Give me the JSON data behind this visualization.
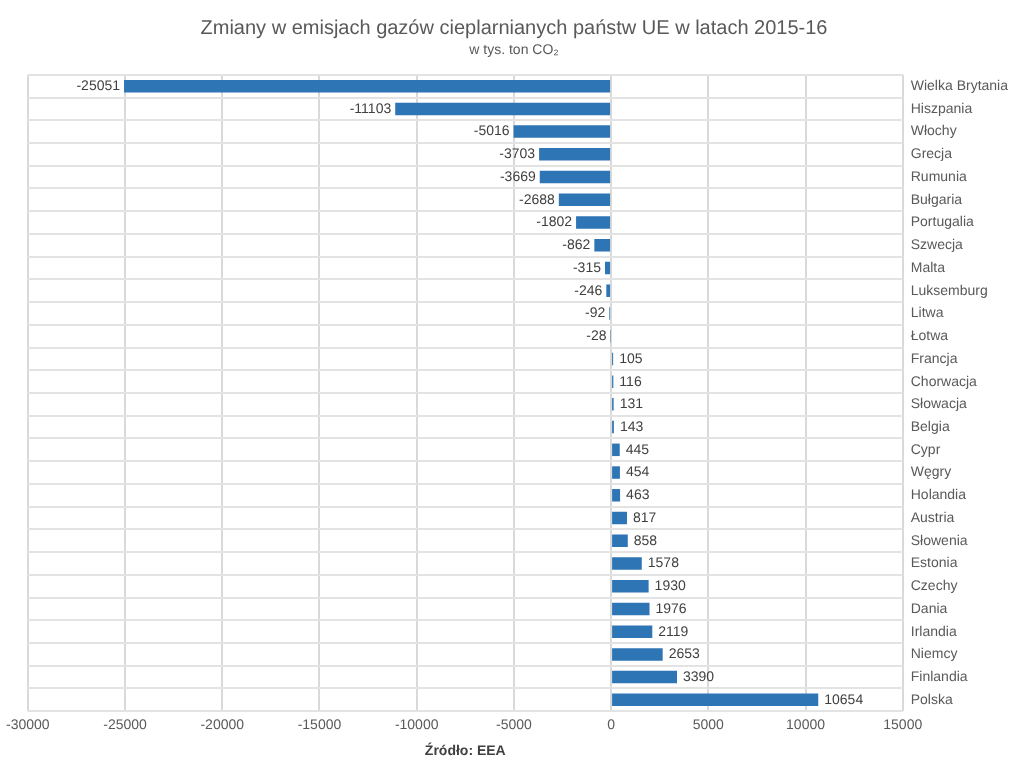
{
  "chart_data": {
    "type": "bar",
    "orientation": "horizontal",
    "title": "Zmiany w emisjach gazów cieplarnianych państw UE w latach 2015-16",
    "subtitle": "w tys. ton CO₂",
    "categories": [
      "Wielka Brytania",
      "Hiszpania",
      "Włochy",
      "Grecja",
      "Rumunia",
      "Bułgaria",
      "Portugalia",
      "Szwecja",
      "Malta",
      "Luksemburg",
      "Litwa",
      "Łotwa",
      "Francja",
      "Chorwacja",
      "Słowacja",
      "Belgia",
      "Cypr",
      "Węgry",
      "Holandia",
      "Austria",
      "Słowenia",
      "Estonia",
      "Czechy",
      "Dania",
      "Irlandia",
      "Niemcy",
      "Finlandia",
      "Polska"
    ],
    "values": [
      -25051,
      -11103,
      -5016,
      -3703,
      -3669,
      -2688,
      -1802,
      -862,
      -315,
      -246,
      -92,
      -28,
      105,
      116,
      131,
      143,
      445,
      454,
      463,
      817,
      858,
      1578,
      1930,
      1976,
      2119,
      2653,
      3390,
      10654
    ],
    "color": "#2e75b6",
    "xlim": [
      -30000,
      15000
    ],
    "xticks": [
      -30000,
      -25000,
      -20000,
      -15000,
      -10000,
      -5000,
      0,
      5000,
      10000,
      15000
    ],
    "grid": true,
    "data_labels": true,
    "legend": false,
    "annotations": [
      "Źródło: EEA"
    ]
  }
}
